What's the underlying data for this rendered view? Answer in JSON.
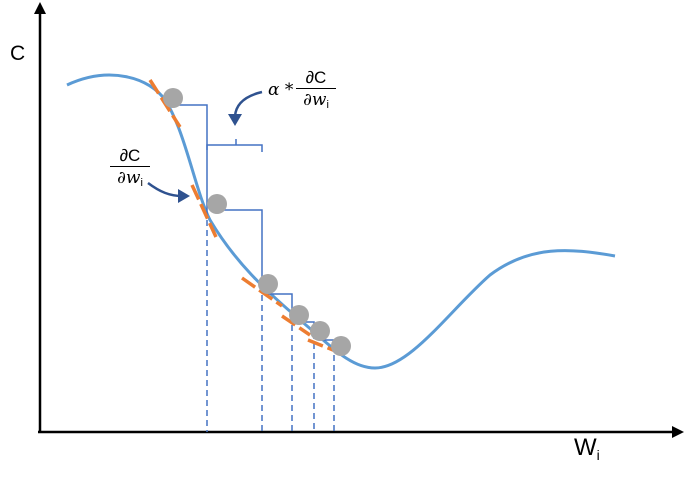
{
  "axes": {
    "y_label": "C",
    "x_label_main": "W",
    "x_label_sub": "i"
  },
  "annotations": {
    "gradient": {
      "numerator": "∂C",
      "den_main": "∂w",
      "den_sub": "i"
    },
    "step": {
      "prefix": "α *",
      "numerator": "∂C",
      "den_main": "∂w",
      "den_sub": "i"
    }
  },
  "colors": {
    "curve": "#5b9bd5",
    "tangent": "#ed7d31",
    "ball": "#a6a6a6",
    "steps": "#4472c4",
    "arrow": "#2f528f",
    "axis": "#000000"
  }
}
